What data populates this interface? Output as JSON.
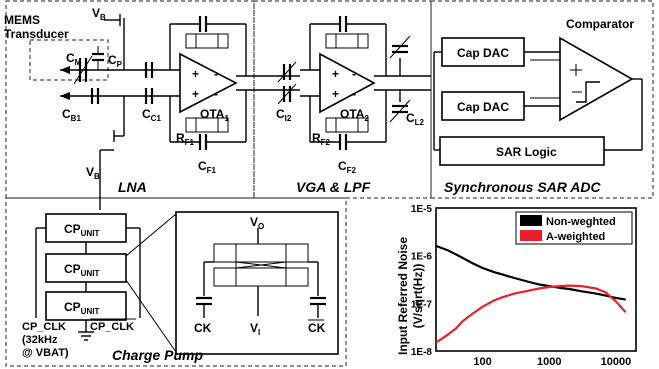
{
  "sections": {
    "lna": "LNA",
    "vga_lpf": "VGA & LPF",
    "sar_adc": "Synchronous SAR ADC",
    "charge_pump": "Charge Pump"
  },
  "lna": {
    "mems_line1": "MEMS",
    "mems_line2": "Transducer",
    "vb_top": "V",
    "vb_sub": "B",
    "vb_bottom": "V",
    "vb_bottom_sub": "B",
    "cm": "C",
    "cm_sub": "M",
    "cp": "C",
    "cp_sub": "P",
    "cb1": "C",
    "cb1_sub": "B1",
    "cc1": "C",
    "cc1_sub": "C1",
    "rf1": "R",
    "rf1_sub": "F1",
    "cf1": "C",
    "cf1_sub": "F1",
    "ota1": "OTA",
    "ota1_sub": "1"
  },
  "vga": {
    "ci2": "C",
    "ci2_sub": "I2",
    "rf2": "R",
    "rf2_sub": "F2",
    "cf2": "C",
    "cf2_sub": "F2",
    "cl2": "C",
    "cl2_sub": "L2",
    "ota2": "OTA",
    "ota2_sub": "2"
  },
  "adc": {
    "cap_dac_1": "Cap DAC",
    "cap_dac_2": "Cap DAC",
    "comparator": "Comparator",
    "sar_logic": "SAR Logic"
  },
  "charge_pump": {
    "cp_unit": "CP",
    "cp_unit_sub": "UNIT",
    "cp_clk": "CP_CLK",
    "cp_clk_bar": "CP_CLK",
    "freq_line1": "(32kHz",
    "freq_line2": "@ VBAT)",
    "vo": "V",
    "vo_sub": "O",
    "vi": "V",
    "vi_sub": "I",
    "ck": "CK",
    "ck_bar": "CK"
  },
  "chart_data": {
    "type": "line",
    "title": "",
    "xlabel": "",
    "ylabel": "Input Referred Noise (V/sqrt(Hz))",
    "ylabel_line1": "Input Referred Noise",
    "ylabel_line2": "(V/sqrt(Hz))",
    "xscale": "log",
    "yscale": "log",
    "xlim": [
      20,
      20000
    ],
    "ylim": [
      1e-08,
      1e-05
    ],
    "x_ticks": [
      "100",
      "1000",
      "10000"
    ],
    "y_ticks": [
      "1E-5",
      "1E-6",
      "1E-7",
      "1E-8"
    ],
    "legend_position": "top-right",
    "series": [
      {
        "name": "Non-weghted",
        "color": "#000000",
        "x": [
          20,
          30,
          50,
          70,
          100,
          150,
          200,
          300,
          500,
          700,
          1000,
          1500,
          2000,
          3000,
          5000,
          7000,
          10000,
          14000
        ],
        "y": [
          1.6e-06,
          1.3e-06,
          9e-07,
          7e-07,
          5.5e-07,
          4.5e-07,
          4e-07,
          3.4e-07,
          2.8e-07,
          2.5e-07,
          2.3e-07,
          2.1e-07,
          2e-07,
          1.8e-07,
          1.6e-07,
          1.45e-07,
          1.3e-07,
          1.2e-07
        ]
      },
      {
        "name": "A-weighted",
        "color": "#e8202a",
        "x": [
          20,
          30,
          40,
          50,
          70,
          100,
          150,
          200,
          300,
          500,
          700,
          1000,
          1500,
          2000,
          3000,
          5000,
          7000,
          10000,
          14000
        ],
        "y": [
          1.5e-08,
          2.2e-08,
          3e-08,
          4.2e-08,
          6e-08,
          8.5e-08,
          1.15e-07,
          1.35e-07,
          1.6e-07,
          1.85e-07,
          2.05e-07,
          2.2e-07,
          2.3e-07,
          2.35e-07,
          2.3e-07,
          2.05e-07,
          1.7e-07,
          1.1e-07,
          6.5e-08
        ]
      }
    ]
  }
}
